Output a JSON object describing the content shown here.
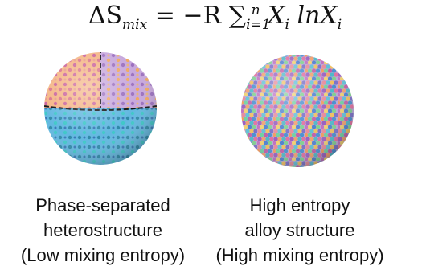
{
  "equation": {
    "lhs": "ΔS",
    "lhs_sub": "mix",
    "rhs": "= −R",
    "sum": "∑",
    "sum_sub": "i=1",
    "sum_sup": "n",
    "term1": "X",
    "term1_sub": "i",
    "term2": "lnX",
    "term2_sub": "i"
  },
  "left": {
    "lines": [
      "Phase-separated",
      "heterostructure",
      "(Low mixing entropy)"
    ]
  },
  "right": {
    "lines": [
      "High entropy",
      "alloy structure",
      "(High mixing entropy)"
    ]
  }
}
